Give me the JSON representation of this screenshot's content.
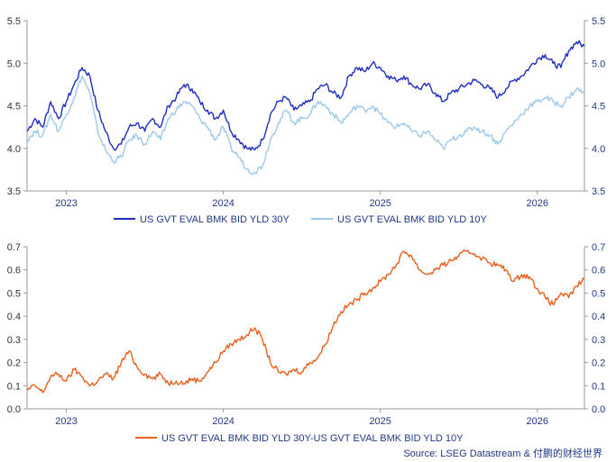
{
  "chart_data": [
    {
      "type": "line",
      "x_tick_labels": [
        "2023",
        "2024",
        "2025",
        "2026"
      ],
      "x_ticks": [
        2023,
        2024,
        2025,
        2026
      ],
      "xlim": [
        2022.75,
        2026.3
      ],
      "ylim": [
        3.5,
        5.5
      ],
      "y_ticks": [
        "3.5",
        "4.0",
        "4.5",
        "5.0",
        "5.5"
      ],
      "y_tick_values": [
        3.5,
        4.0,
        4.5,
        5.0,
        5.5
      ],
      "right_axis": true,
      "grid": false,
      "legend_position": "bottom",
      "series": [
        {
          "name": "US GVT EVAL BMK BID YLD 30Y",
          "color": "#1f2fbf",
          "points": [
            [
              2022.75,
              4.2
            ],
            [
              2022.8,
              4.35
            ],
            [
              2022.85,
              4.25
            ],
            [
              2022.9,
              4.55
            ],
            [
              2022.95,
              4.35
            ],
            [
              2023.0,
              4.55
            ],
            [
              2023.05,
              4.75
            ],
            [
              2023.1,
              4.95
            ],
            [
              2023.15,
              4.85
            ],
            [
              2023.2,
              4.45
            ],
            [
              2023.25,
              4.2
            ],
            [
              2023.3,
              4.0
            ],
            [
              2023.35,
              4.05
            ],
            [
              2023.4,
              4.25
            ],
            [
              2023.45,
              4.3
            ],
            [
              2023.5,
              4.2
            ],
            [
              2023.55,
              4.35
            ],
            [
              2023.6,
              4.25
            ],
            [
              2023.65,
              4.5
            ],
            [
              2023.7,
              4.6
            ],
            [
              2023.75,
              4.75
            ],
            [
              2023.8,
              4.7
            ],
            [
              2023.85,
              4.55
            ],
            [
              2023.9,
              4.45
            ],
            [
              2023.95,
              4.35
            ],
            [
              2024.0,
              4.45
            ],
            [
              2024.05,
              4.2
            ],
            [
              2024.1,
              4.1
            ],
            [
              2024.15,
              4.0
            ],
            [
              2024.2,
              3.98
            ],
            [
              2024.25,
              4.1
            ],
            [
              2024.3,
              4.4
            ],
            [
              2024.35,
              4.55
            ],
            [
              2024.4,
              4.6
            ],
            [
              2024.45,
              4.45
            ],
            [
              2024.5,
              4.5
            ],
            [
              2024.55,
              4.55
            ],
            [
              2024.6,
              4.7
            ],
            [
              2024.65,
              4.75
            ],
            [
              2024.7,
              4.65
            ],
            [
              2024.75,
              4.6
            ],
            [
              2024.8,
              4.85
            ],
            [
              2024.85,
              4.95
            ],
            [
              2024.9,
              4.9
            ],
            [
              2024.95,
              5.0
            ],
            [
              2025.0,
              4.95
            ],
            [
              2025.05,
              4.85
            ],
            [
              2025.1,
              4.8
            ],
            [
              2025.15,
              4.85
            ],
            [
              2025.2,
              4.75
            ],
            [
              2025.25,
              4.7
            ],
            [
              2025.3,
              4.75
            ],
            [
              2025.35,
              4.65
            ],
            [
              2025.4,
              4.55
            ],
            [
              2025.45,
              4.65
            ],
            [
              2025.5,
              4.7
            ],
            [
              2025.55,
              4.75
            ],
            [
              2025.6,
              4.8
            ],
            [
              2025.65,
              4.75
            ],
            [
              2025.7,
              4.7
            ],
            [
              2025.75,
              4.6
            ],
            [
              2025.8,
              4.7
            ],
            [
              2025.85,
              4.8
            ],
            [
              2025.9,
              4.85
            ],
            [
              2025.95,
              4.95
            ],
            [
              2026.0,
              5.05
            ],
            [
              2026.05,
              5.1
            ],
            [
              2026.1,
              5.0
            ],
            [
              2026.15,
              4.95
            ],
            [
              2026.2,
              5.15
            ],
            [
              2026.25,
              5.25
            ],
            [
              2026.3,
              5.2
            ]
          ]
        },
        {
          "name": "US GVT EVAL BMK BID YLD 10Y",
          "color": "#9cc9ec",
          "points": [
            [
              2022.75,
              4.1
            ],
            [
              2022.8,
              4.2
            ],
            [
              2022.85,
              4.15
            ],
            [
              2022.9,
              4.4
            ],
            [
              2022.95,
              4.2
            ],
            [
              2023.0,
              4.4
            ],
            [
              2023.05,
              4.6
            ],
            [
              2023.1,
              4.85
            ],
            [
              2023.15,
              4.65
            ],
            [
              2023.2,
              4.2
            ],
            [
              2023.25,
              3.98
            ],
            [
              2023.3,
              3.85
            ],
            [
              2023.35,
              3.9
            ],
            [
              2023.4,
              4.1
            ],
            [
              2023.45,
              4.15
            ],
            [
              2023.5,
              4.05
            ],
            [
              2023.55,
              4.2
            ],
            [
              2023.6,
              4.1
            ],
            [
              2023.65,
              4.35
            ],
            [
              2023.7,
              4.45
            ],
            [
              2023.75,
              4.55
            ],
            [
              2023.8,
              4.5
            ],
            [
              2023.85,
              4.35
            ],
            [
              2023.9,
              4.25
            ],
            [
              2023.95,
              4.1
            ],
            [
              2024.0,
              4.25
            ],
            [
              2024.05,
              4.0
            ],
            [
              2024.1,
              3.9
            ],
            [
              2024.15,
              3.75
            ],
            [
              2024.2,
              3.72
            ],
            [
              2024.25,
              3.8
            ],
            [
              2024.3,
              4.1
            ],
            [
              2024.35,
              4.3
            ],
            [
              2024.4,
              4.45
            ],
            [
              2024.45,
              4.3
            ],
            [
              2024.5,
              4.35
            ],
            [
              2024.55,
              4.4
            ],
            [
              2024.6,
              4.55
            ],
            [
              2024.65,
              4.5
            ],
            [
              2024.7,
              4.4
            ],
            [
              2024.75,
              4.3
            ],
            [
              2024.8,
              4.4
            ],
            [
              2024.85,
              4.5
            ],
            [
              2024.9,
              4.45
            ],
            [
              2024.95,
              4.5
            ],
            [
              2025.0,
              4.4
            ],
            [
              2025.05,
              4.3
            ],
            [
              2025.1,
              4.25
            ],
            [
              2025.15,
              4.3
            ],
            [
              2025.2,
              4.2
            ],
            [
              2025.25,
              4.15
            ],
            [
              2025.3,
              4.2
            ],
            [
              2025.35,
              4.1
            ],
            [
              2025.4,
              4.0
            ],
            [
              2025.45,
              4.1
            ],
            [
              2025.5,
              4.15
            ],
            [
              2025.55,
              4.2
            ],
            [
              2025.6,
              4.25
            ],
            [
              2025.65,
              4.2
            ],
            [
              2025.7,
              4.15
            ],
            [
              2025.75,
              4.05
            ],
            [
              2025.8,
              4.2
            ],
            [
              2025.85,
              4.3
            ],
            [
              2025.9,
              4.4
            ],
            [
              2025.95,
              4.5
            ],
            [
              2026.0,
              4.55
            ],
            [
              2026.05,
              4.6
            ],
            [
              2026.1,
              4.55
            ],
            [
              2026.15,
              4.5
            ],
            [
              2026.2,
              4.6
            ],
            [
              2026.25,
              4.7
            ],
            [
              2026.3,
              4.65
            ]
          ]
        }
      ]
    },
    {
      "type": "line",
      "x_tick_labels": [
        "2023",
        "2024",
        "2025",
        "2026"
      ],
      "x_ticks": [
        2023,
        2024,
        2025,
        2026
      ],
      "xlim": [
        2022.75,
        2026.3
      ],
      "ylim": [
        0.0,
        0.7
      ],
      "y_ticks": [
        "0.0",
        "0.1",
        "0.2",
        "0.3",
        "0.4",
        "0.5",
        "0.6",
        "0.7"
      ],
      "y_tick_values": [
        0.0,
        0.1,
        0.2,
        0.3,
        0.4,
        0.5,
        0.6,
        0.7
      ],
      "right_axis": true,
      "grid": false,
      "legend_position": "bottom",
      "series": [
        {
          "name": "US GVT EVAL BMK BID YLD 30Y-US GVT EVAL BMK BID YLD 10Y",
          "color": "#e8601c",
          "points": [
            [
              2022.75,
              0.08
            ],
            [
              2022.8,
              0.1
            ],
            [
              2022.85,
              0.07
            ],
            [
              2022.9,
              0.14
            ],
            [
              2022.95,
              0.15
            ],
            [
              2023.0,
              0.12
            ],
            [
              2023.05,
              0.17
            ],
            [
              2023.1,
              0.14
            ],
            [
              2023.15,
              0.1
            ],
            [
              2023.2,
              0.12
            ],
            [
              2023.25,
              0.15
            ],
            [
              2023.3,
              0.13
            ],
            [
              2023.35,
              0.2
            ],
            [
              2023.4,
              0.25
            ],
            [
              2023.45,
              0.18
            ],
            [
              2023.5,
              0.15
            ],
            [
              2023.55,
              0.13
            ],
            [
              2023.6,
              0.15
            ],
            [
              2023.65,
              0.11
            ],
            [
              2023.7,
              0.12
            ],
            [
              2023.75,
              0.11
            ],
            [
              2023.8,
              0.13
            ],
            [
              2023.85,
              0.12
            ],
            [
              2023.9,
              0.16
            ],
            [
              2023.95,
              0.2
            ],
            [
              2024.0,
              0.25
            ],
            [
              2024.05,
              0.28
            ],
            [
              2024.1,
              0.3
            ],
            [
              2024.15,
              0.32
            ],
            [
              2024.2,
              0.35
            ],
            [
              2024.25,
              0.3
            ],
            [
              2024.3,
              0.2
            ],
            [
              2024.35,
              0.16
            ],
            [
              2024.4,
              0.15
            ],
            [
              2024.45,
              0.17
            ],
            [
              2024.5,
              0.16
            ],
            [
              2024.55,
              0.2
            ],
            [
              2024.6,
              0.22
            ],
            [
              2024.65,
              0.28
            ],
            [
              2024.7,
              0.36
            ],
            [
              2024.75,
              0.42
            ],
            [
              2024.8,
              0.45
            ],
            [
              2024.85,
              0.47
            ],
            [
              2024.9,
              0.5
            ],
            [
              2024.95,
              0.52
            ],
            [
              2025.0,
              0.55
            ],
            [
              2025.05,
              0.58
            ],
            [
              2025.1,
              0.62
            ],
            [
              2025.15,
              0.68
            ],
            [
              2025.2,
              0.66
            ],
            [
              2025.25,
              0.6
            ],
            [
              2025.3,
              0.58
            ],
            [
              2025.35,
              0.6
            ],
            [
              2025.4,
              0.62
            ],
            [
              2025.45,
              0.64
            ],
            [
              2025.5,
              0.66
            ],
            [
              2025.55,
              0.68
            ],
            [
              2025.6,
              0.67
            ],
            [
              2025.65,
              0.65
            ],
            [
              2025.7,
              0.63
            ],
            [
              2025.75,
              0.62
            ],
            [
              2025.8,
              0.6
            ],
            [
              2025.85,
              0.55
            ],
            [
              2025.9,
              0.58
            ],
            [
              2025.95,
              0.57
            ],
            [
              2026.0,
              0.52
            ],
            [
              2026.05,
              0.48
            ],
            [
              2026.1,
              0.45
            ],
            [
              2026.15,
              0.5
            ],
            [
              2026.2,
              0.48
            ],
            [
              2026.25,
              0.53
            ],
            [
              2026.3,
              0.56
            ]
          ]
        }
      ]
    }
  ],
  "source": "Source: LSEG Datastream & 付鹏的财经世界"
}
